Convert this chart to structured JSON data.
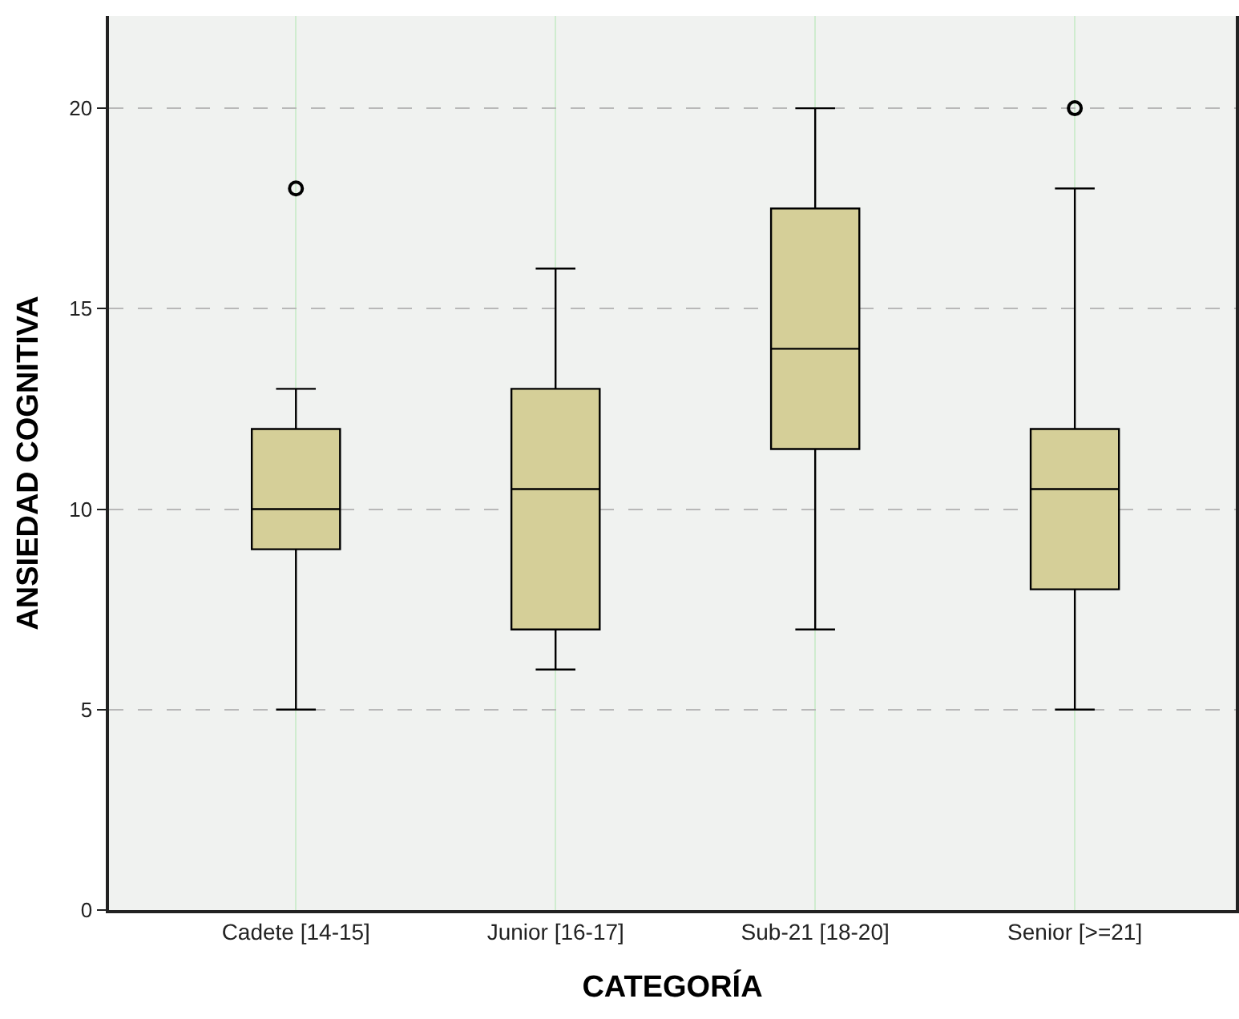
{
  "chart_data": {
    "type": "box",
    "xlabel": "CATEGORÍA",
    "ylabel": "ANSIEDAD COGNITIVA",
    "categories": [
      "Cadete [14-15]",
      "Junior [16-17]",
      "Sub-21 [18-20]",
      "Senior [>=21]"
    ],
    "boxes": [
      {
        "low": 5,
        "q1": 9,
        "median": 10,
        "q3": 12,
        "high": 13,
        "outliers": [
          18
        ]
      },
      {
        "low": 6,
        "q1": 7,
        "median": 10.5,
        "q3": 13,
        "high": 16
      },
      {
        "low": 7,
        "q1": 11.5,
        "median": 14,
        "q3": 17.5,
        "high": 20
      },
      {
        "low": 5,
        "q1": 8,
        "median": 10.5,
        "q3": 12,
        "high": 18,
        "outliers": [
          20
        ]
      }
    ],
    "color": "#d5cf98",
    "ylim": [
      0,
      22.3
    ],
    "yticks": [
      0,
      5,
      10,
      15,
      20
    ],
    "grid": true
  }
}
